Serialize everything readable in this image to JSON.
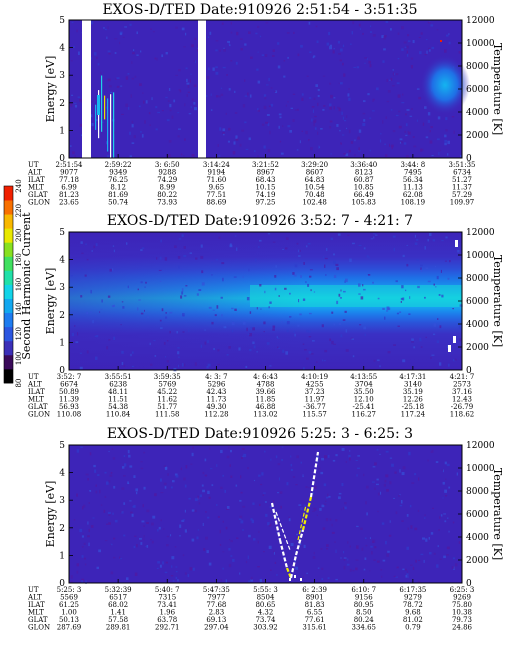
{
  "colorbar": {
    "label": "Second Harmonic Current",
    "ticks": [
      "80",
      "100",
      "120",
      "140",
      "160",
      "180",
      "200",
      "220",
      "240"
    ],
    "colors": [
      "#000000",
      "#3a0a5a",
      "#3b2fb8",
      "#2b56e0",
      "#1e7cf0",
      "#12a8f0",
      "#12d4e8",
      "#20e0a8",
      "#40e060",
      "#88e020",
      "#e8e800",
      "#f8b800",
      "#f87000",
      "#f02000"
    ]
  },
  "chart_data": [
    {
      "type": "heatmap",
      "title": "EXOS-D/TED   Date:910926  2:51:54 - 3:51:35",
      "ylabel": "Energy [eV]",
      "ylabel_right": "Temperature [K]",
      "ylim": [
        0,
        5
      ],
      "ylim_right": [
        0,
        12000
      ],
      "yticks": [
        "0",
        "1",
        "2",
        "3",
        "4",
        "5"
      ],
      "yticks_right": [
        "0",
        "2000",
        "4000",
        "6000",
        "8000",
        "10000",
        "12000"
      ],
      "row_labels": [
        "UT",
        "ALT",
        "ILAT",
        "MLT",
        "GLAT",
        "GLON"
      ],
      "columns": [
        [
          "2:51:54",
          "9077",
          "77.18",
          "6.99",
          "81.23",
          "23.65"
        ],
        [
          "2:59:22",
          "9349",
          "76.25",
          "8.12",
          "81.69",
          "50.74"
        ],
        [
          "3: 6:50",
          "9288",
          "74.29",
          "8.99",
          "80.22",
          "73.93"
        ],
        [
          "3:14:24",
          "9194",
          "71.60",
          "9.65",
          "77.51",
          "88.69"
        ],
        [
          "3:21:52",
          "8967",
          "68.43",
          "10.15",
          "74.19",
          "97.25"
        ],
        [
          "3:29:20",
          "8607",
          "64.83",
          "10.54",
          "70.48",
          "102.48"
        ],
        [
          "3:36:40",
          "8123",
          "60.87",
          "10.85",
          "66.49",
          "105.83"
        ],
        [
          "3:44: 8",
          "7495",
          "56.34",
          "11.13",
          "62.08",
          "108.19"
        ],
        [
          "3:51:35",
          "6734",
          "51.27",
          "11.37",
          "57.29",
          "109.97"
        ]
      ],
      "background_level": 115,
      "gaps": [
        [
          0.08,
          0.11
        ],
        [
          0.445,
          0.47
        ]
      ],
      "features": "faint vertical spikes near start; warm blob at right edge at 2-3 eV"
    },
    {
      "type": "heatmap",
      "title": "EXOS-D/TED   Date:910926  3:52: 7 - 4:21: 7",
      "ylabel": "Energy [eV]",
      "ylabel_right": "Temperature [K]",
      "ylim": [
        0,
        5
      ],
      "ylim_right": [
        0,
        12000
      ],
      "yticks": [
        "0",
        "1",
        "2",
        "3",
        "4",
        "5"
      ],
      "yticks_right": [
        "0",
        "2000",
        "4000",
        "6000",
        "8000",
        "10000",
        "12000"
      ],
      "row_labels": [
        "UT",
        "ALT",
        "ILAT",
        "MLT",
        "GLAT",
        "GLON"
      ],
      "columns": [
        [
          "3:52: 7",
          "6674",
          "50.89",
          "11.39",
          "56.93",
          "110.08"
        ],
        [
          "3:55:51",
          "6238",
          "48.11",
          "11.51",
          "54.38",
          "110.84"
        ],
        [
          "3:59:35",
          "5769",
          "45.22",
          "11.62",
          "51.77",
          "111.58"
        ],
        [
          "4: 3: 7",
          "5296",
          "42.43",
          "11.73",
          "49.30",
          "112.28"
        ],
        [
          "4: 6:43",
          "4788",
          "39.66",
          "11.85",
          "46.88",
          "113.02"
        ],
        [
          "4:10:19",
          "4255",
          "37.23",
          "11.97",
          "-36.77",
          "115.57"
        ],
        [
          "4:13:55",
          "3704",
          "35.50",
          "12.10",
          "-25.41",
          "116.27"
        ],
        [
          "4:17:31",
          "3140",
          "35.19",
          "12.26",
          "-25.18",
          "117.24"
        ],
        [
          "4:21: 7",
          "2573",
          "37.16",
          "12.43",
          "-26.79",
          "118.62"
        ]
      ],
      "background_level": 112,
      "features": "broad enhanced band between 1.5 and 3.2 eV, peak near 2.2-2.6 eV on right half"
    },
    {
      "type": "heatmap",
      "title": "EXOS-D/TED   Date:910926  5:25: 3 - 6:25: 3",
      "ylabel": "Energy [eV]",
      "ylabel_right": "Temperature [K]",
      "ylim": [
        0,
        5
      ],
      "ylim_right": [
        0,
        12000
      ],
      "yticks": [
        "0",
        "1",
        "2",
        "3",
        "4",
        "5"
      ],
      "yticks_right": [
        "0",
        "2000",
        "4000",
        "6000",
        "8000",
        "10000",
        "12000"
      ],
      "row_labels": [
        "UT",
        "ALT",
        "ILAT",
        "MLT",
        "GLAT",
        "GLON"
      ],
      "columns": [
        [
          "5:25: 3",
          "5569",
          "61.25",
          "1.00",
          "50.13",
          "287.69"
        ],
        [
          "5:32:39",
          "6517",
          "68.02",
          "1.41",
          "57.58",
          "289.81"
        ],
        [
          "5:40: 7",
          "7315",
          "73.41",
          "1.96",
          "63.78",
          "292.71"
        ],
        [
          "5:47:35",
          "7977",
          "77.68",
          "2.83",
          "69.13",
          "297.04"
        ],
        [
          "5:55: 3",
          "8504",
          "80.65",
          "4.32",
          "73.74",
          "303.92"
        ],
        [
          "6: 2:39",
          "8901",
          "81.83",
          "6.55",
          "77.61",
          "315.61"
        ],
        [
          "6:10: 7",
          "9156",
          "80.95",
          "8.50",
          "80.24",
          "334.65"
        ],
        [
          "6:17:35",
          "9279",
          "78.72",
          "9.68",
          "81.02",
          "0.79"
        ],
        [
          "6:25: 3",
          "9269",
          "75.80",
          "10.38",
          "79.73",
          "24.86"
        ]
      ],
      "background_level": 114,
      "features": "white/yellow V-shaped traces rising from 0.5 to 4.8 eV around 6:00"
    }
  ]
}
